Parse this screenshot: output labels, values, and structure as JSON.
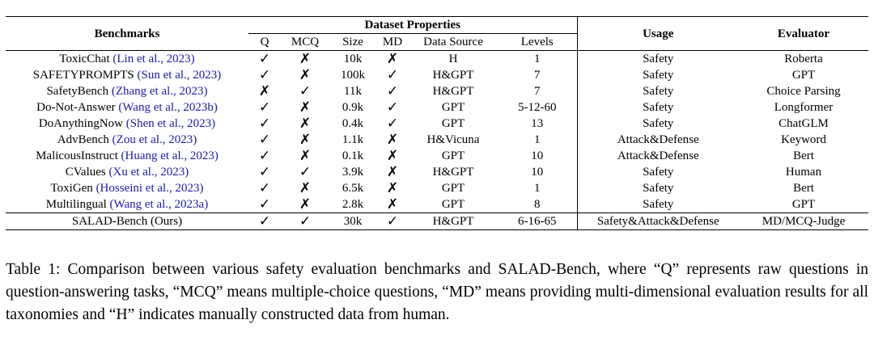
{
  "table": {
    "headers": {
      "benchmarks": "Benchmarks",
      "dataset_properties": "Dataset Properties",
      "usage": "Usage",
      "evaluator": "Evaluator",
      "sub": [
        "Q",
        "MCQ",
        "Size",
        "MD",
        "Data Source",
        "Levels"
      ]
    },
    "rows": [
      {
        "name": "ToxicChat",
        "cite": "(Lin et al., 2023)",
        "q": "✓",
        "mcq": "✗",
        "size": "10k",
        "md": "✗",
        "source": "H",
        "levels": "1",
        "usage": "Safety",
        "evaluator": "Roberta"
      },
      {
        "name": "SAFETYPROMPTS",
        "cite": "(Sun et al., 2023)",
        "q": "✓",
        "mcq": "✗",
        "size": "100k",
        "md": "✓",
        "source": "H&GPT",
        "levels": "7",
        "usage": "Safety",
        "evaluator": "GPT"
      },
      {
        "name": "SafetyBench",
        "cite": "(Zhang et al., 2023)",
        "q": "✗",
        "mcq": "✓",
        "size": "11k",
        "md": "✓",
        "source": "H&GPT",
        "levels": "7",
        "usage": "Safety",
        "evaluator": "Choice Parsing"
      },
      {
        "name": "Do-Not-Answer",
        "cite": "(Wang et al., 2023b)",
        "q": "✓",
        "mcq": "✗",
        "size": "0.9k",
        "md": "✓",
        "source": "GPT",
        "levels": "5-12-60",
        "usage": "Safety",
        "evaluator": "Longformer"
      },
      {
        "name": "DoAnythingNow",
        "cite": "(Shen et al., 2023)",
        "q": "✓",
        "mcq": "✗",
        "size": "0.4k",
        "md": "✓",
        "source": "GPT",
        "levels": "13",
        "usage": "Safety",
        "evaluator": "ChatGLM"
      },
      {
        "name": "AdvBench",
        "cite": "(Zou et al., 2023)",
        "q": "✓",
        "mcq": "✗",
        "size": "1.1k",
        "md": "✗",
        "source": "H&Vicuna",
        "levels": "1",
        "usage": "Attack&Defense",
        "evaluator": "Keyword"
      },
      {
        "name": "MalicousInstruct",
        "cite": "(Huang et al., 2023)",
        "q": "✓",
        "mcq": "✗",
        "size": "0.1k",
        "md": "✗",
        "source": "GPT",
        "levels": "10",
        "usage": "Attack&Defense",
        "evaluator": "Bert"
      },
      {
        "name": "CValues",
        "cite": "(Xu et al., 2023)",
        "q": "✓",
        "mcq": "✓",
        "size": "3.9k",
        "md": "✗",
        "source": "H&GPT",
        "levels": "10",
        "usage": "Safety",
        "evaluator": "Human"
      },
      {
        "name": "ToxiGen",
        "cite": "(Hosseini et al., 2023)",
        "q": "✓",
        "mcq": "✗",
        "size": "6.5k",
        "md": "✗",
        "source": "GPT",
        "levels": "1",
        "usage": "Safety",
        "evaluator": "Bert"
      },
      {
        "name": "Multilingual",
        "cite": "(Wang et al., 2023a)",
        "q": "✓",
        "mcq": "✗",
        "size": "2.8k",
        "md": "✗",
        "source": "GPT",
        "levels": "8",
        "usage": "Safety",
        "evaluator": "GPT"
      }
    ],
    "ours": {
      "name": "SALAD-Bench (Ours)",
      "q": "✓",
      "mcq": "✓",
      "size": "30k",
      "md": "✓",
      "source": "H&GPT",
      "levels": "6-16-65",
      "usage": "Safety&Attack&Defense",
      "evaluator": "MD/MCQ-Judge"
    }
  },
  "caption": "Table 1: Comparison between various safety evaluation benchmarks and SALAD-Bench, where “Q” represents raw questions in question-answering tasks, “MCQ” means multiple-choice questions, “MD” means providing multi-dimensional evaluation results for all taxonomies and “H” indicates manually constructed data from human."
}
